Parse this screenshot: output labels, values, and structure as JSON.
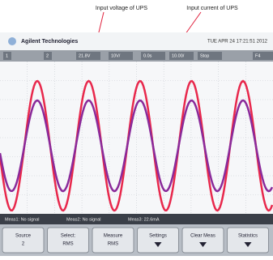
{
  "annotations": [
    "Input voltage of UPS",
    "Input current of UPS"
  ],
  "header": {
    "brand": "Agilent Technologies",
    "datetime": "TUE APR 24 17:21:51 2012"
  },
  "status_bar": [
    "1",
    "2",
    "21.8V",
    "10V/",
    "0.0s",
    "10.00/",
    "Stop",
    "F4"
  ],
  "measurements": [
    "Meas1: No signal",
    "Meas2: No signal",
    "Meas3: 22.6mA"
  ],
  "softkeys": [
    {
      "label": "Source",
      "value": "2"
    },
    {
      "label": "Select:",
      "value": "RMS"
    },
    {
      "label": "Measure",
      "value": "RMS"
    },
    {
      "label": "Settings",
      "value": ""
    },
    {
      "label": "Clear Meas",
      "value": ""
    },
    {
      "label": "Statistics",
      "value": ""
    }
  ]
}
